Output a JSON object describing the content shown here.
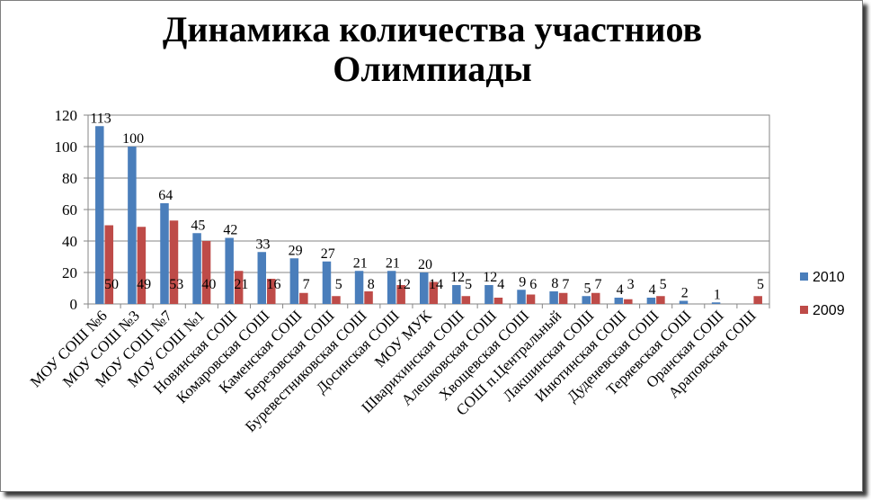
{
  "chart_data": {
    "type": "bar",
    "title_line1": "Динамика количества участниов",
    "title_line2": "Олимпиады",
    "ylim": [
      0,
      120
    ],
    "yticks": [
      "0",
      "20",
      "40",
      "60",
      "80",
      "100",
      "120"
    ],
    "grid": true,
    "legend_position": "right",
    "categories": [
      "МОУ СОШ №6",
      "МОУ СОШ №3",
      "МОУ СОШ №7",
      "МОУ СОШ №1",
      "Новинская СОШ",
      "Комаровская СОШ",
      "Каменская СОШ",
      "Березовская СОШ",
      "Буревестниковская СОШ",
      "Досинская СОШ",
      "МОУ МУК",
      "Шварихинская СОШ",
      "Алешковская СОШ",
      "Хвощевская СОШ",
      "СОШ п.Центральный",
      "Лакшинская СОШ",
      "Инютинская СОШ",
      "Дуденевская СОШ",
      "Теряевская СОШ",
      "Оранская СОШ",
      "Араповская СОШ"
    ],
    "series": [
      {
        "name": "2010",
        "color": "#4a7ebb",
        "values": [
          113,
          100,
          64,
          45,
          42,
          33,
          29,
          27,
          21,
          21,
          20,
          12,
          12,
          9,
          8,
          5,
          4,
          4,
          2,
          1,
          0
        ],
        "labels": [
          "113",
          "100",
          "64",
          "45",
          "42",
          "33",
          "29",
          "27",
          "21",
          "21",
          "20",
          "12",
          "12",
          "9",
          "8",
          "5",
          "4",
          "4",
          "2",
          "1",
          ""
        ]
      },
      {
        "name": "2009",
        "color": "#be4b48",
        "values": [
          50,
          49,
          53,
          40,
          21,
          16,
          7,
          5,
          8,
          12,
          14,
          5,
          4,
          6,
          7,
          7,
          3,
          5,
          0,
          0,
          5
        ],
        "labels": [
          "50",
          "49",
          "53",
          "40",
          "21",
          "16",
          "7",
          "5",
          "8",
          "12",
          "14",
          "5",
          "4",
          "6",
          "7",
          "7",
          "3",
          "5",
          "",
          "",
          "5"
        ]
      }
    ]
  }
}
